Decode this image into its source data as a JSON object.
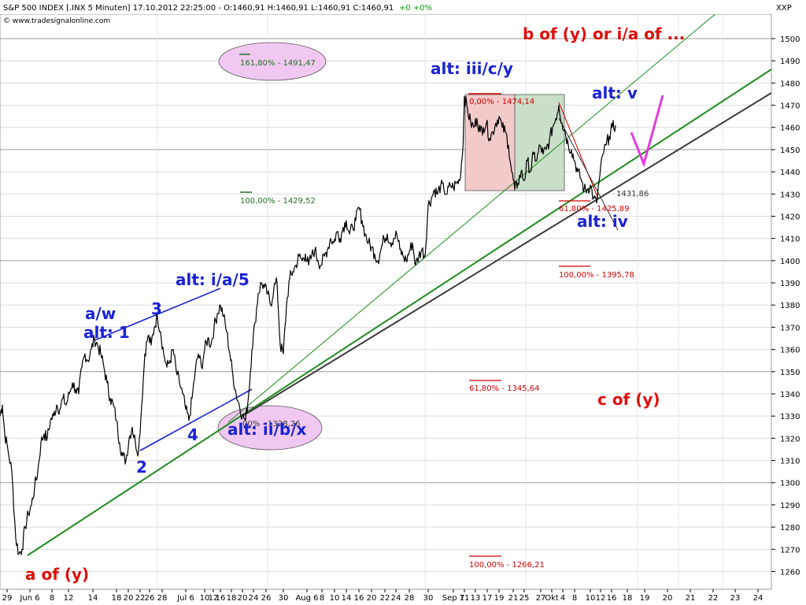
{
  "header": {
    "title": "S&P 500 INDEX [.INX  5 Minuten] 17.10.2012 22:25:00 - O:1460,91 H:1460,91 L:1460,91 C:1460,91",
    "change": "+0 +0%",
    "site": "© www.tradesignalonline.com",
    "symbol": "XXP"
  },
  "colors": {
    "price": "#000000",
    "wave_blue": "#1a23d6",
    "wave_red": "#e0100b",
    "trend_green": "#1e8c1e",
    "trend_gray": "#3c3c3c",
    "projection_magenta": "#e83ae0",
    "ellipse_fill": "#f1c8f1",
    "box_red": "#f2caca",
    "box_green": "#c9dfc9"
  },
  "chart_data": {
    "type": "line",
    "series_type": "price (5-minute)",
    "ylim": [
      1252,
      1511
    ],
    "y_ticks": [
      1260,
      1270,
      1280,
      1290,
      1300,
      1310,
      1320,
      1330,
      1340,
      1350,
      1360,
      1370,
      1380,
      1390,
      1400,
      1410,
      1420,
      1430,
      1440,
      1450,
      1460,
      1470,
      1480,
      1490,
      1500
    ],
    "x_tick_labels": [
      "29",
      "Jun 6",
      "8",
      "12",
      "14",
      "18",
      "20",
      "22",
      "26",
      "28",
      "Jul 6",
      "10",
      "12",
      "16",
      "18",
      "20",
      "24",
      "26",
      "30",
      "Aug 6",
      "8",
      "10",
      "14",
      "16",
      "20",
      "22",
      "24",
      "28",
      "30",
      "Sep 7",
      "11",
      "13",
      "17",
      "19",
      "21",
      "25",
      "27",
      "Okt",
      "4",
      "8",
      "10",
      "12",
      "16",
      "18",
      "19",
      "20",
      "21",
      "22",
      "23",
      "24"
    ],
    "grid": true,
    "price_path": [
      [
        0,
        1330
      ],
      [
        3,
        1335
      ],
      [
        6,
        1322
      ],
      [
        10,
        1315
      ],
      [
        15,
        1305
      ],
      [
        20,
        1275
      ],
      [
        24,
        1268
      ],
      [
        28,
        1270
      ],
      [
        32,
        1280
      ],
      [
        36,
        1286
      ],
      [
        40,
        1290
      ],
      [
        44,
        1298
      ],
      [
        48,
        1305
      ],
      [
        52,
        1318
      ],
      [
        56,
        1322
      ],
      [
        60,
        1320
      ],
      [
        64,
        1328
      ],
      [
        68,
        1330
      ],
      [
        72,
        1335
      ],
      [
        76,
        1333
      ],
      [
        80,
        1338
      ],
      [
        84,
        1335
      ],
      [
        88,
        1340
      ],
      [
        92,
        1345
      ],
      [
        96,
        1342
      ],
      [
        100,
        1340
      ],
      [
        104,
        1352
      ],
      [
        108,
        1358
      ],
      [
        112,
        1355
      ],
      [
        116,
        1360
      ],
      [
        120,
        1365
      ],
      [
        124,
        1362
      ],
      [
        128,
        1358
      ],
      [
        132,
        1352
      ],
      [
        136,
        1345
      ],
      [
        140,
        1338
      ],
      [
        144,
        1335
      ],
      [
        148,
        1328
      ],
      [
        152,
        1318
      ],
      [
        156,
        1312
      ],
      [
        160,
        1310
      ],
      [
        164,
        1320
      ],
      [
        168,
        1325
      ],
      [
        172,
        1318
      ],
      [
        176,
        1314
      ],
      [
        180,
        1335
      ],
      [
        184,
        1358
      ],
      [
        188,
        1366
      ],
      [
        192,
        1362
      ],
      [
        196,
        1370
      ],
      [
        200,
        1375
      ],
      [
        204,
        1368
      ],
      [
        208,
        1358
      ],
      [
        212,
        1352
      ],
      [
        216,
        1355
      ],
      [
        220,
        1360
      ],
      [
        224,
        1350
      ],
      [
        228,
        1345
      ],
      [
        232,
        1340
      ],
      [
        236,
        1333
      ],
      [
        240,
        1328
      ],
      [
        244,
        1338
      ],
      [
        248,
        1350
      ],
      [
        252,
        1358
      ],
      [
        256,
        1352
      ],
      [
        260,
        1360
      ],
      [
        264,
        1365
      ],
      [
        268,
        1362
      ],
      [
        272,
        1370
      ],
      [
        276,
        1376
      ],
      [
        280,
        1380
      ],
      [
        284,
        1375
      ],
      [
        288,
        1368
      ],
      [
        292,
        1358
      ],
      [
        296,
        1348
      ],
      [
        300,
        1340
      ],
      [
        304,
        1335
      ],
      [
        308,
        1330
      ],
      [
        312,
        1328
      ],
      [
        316,
        1340
      ],
      [
        320,
        1360
      ],
      [
        324,
        1372
      ],
      [
        328,
        1385
      ],
      [
        332,
        1390
      ],
      [
        336,
        1388
      ],
      [
        340,
        1385
      ],
      [
        344,
        1380
      ],
      [
        348,
        1388
      ],
      [
        352,
        1390
      ],
      [
        356,
        1362
      ],
      [
        360,
        1358
      ],
      [
        364,
        1380
      ],
      [
        368,
        1392
      ],
      [
        372,
        1395
      ],
      [
        376,
        1398
      ],
      [
        380,
        1402
      ],
      [
        384,
        1400
      ],
      [
        388,
        1403
      ],
      [
        392,
        1398
      ],
      [
        396,
        1402
      ],
      [
        400,
        1405
      ],
      [
        404,
        1400
      ],
      [
        408,
        1398
      ],
      [
        412,
        1402
      ],
      [
        416,
        1405
      ],
      [
        420,
        1410
      ],
      [
        424,
        1408
      ],
      [
        428,
        1413
      ],
      [
        432,
        1410
      ],
      [
        436,
        1415
      ],
      [
        440,
        1418
      ],
      [
        444,
        1412
      ],
      [
        448,
        1415
      ],
      [
        452,
        1418
      ],
      [
        456,
        1424
      ],
      [
        460,
        1418
      ],
      [
        464,
        1412
      ],
      [
        468,
        1408
      ],
      [
        472,
        1406
      ],
      [
        476,
        1403
      ],
      [
        480,
        1400
      ],
      [
        484,
        1405
      ],
      [
        488,
        1410
      ],
      [
        492,
        1412
      ],
      [
        496,
        1408
      ],
      [
        500,
        1410
      ],
      [
        504,
        1412
      ],
      [
        508,
        1405
      ],
      [
        512,
        1402
      ],
      [
        516,
        1400
      ],
      [
        520,
        1404
      ],
      [
        524,
        1408
      ],
      [
        528,
        1398
      ],
      [
        532,
        1402
      ],
      [
        536,
        1405
      ],
      [
        540,
        1402
      ],
      [
        544,
        1425
      ],
      [
        548,
        1428
      ],
      [
        552,
        1432
      ],
      [
        556,
        1430
      ],
      [
        560,
        1434
      ],
      [
        564,
        1432
      ],
      [
        568,
        1430
      ],
      [
        572,
        1434
      ],
      [
        576,
        1433
      ],
      [
        580,
        1435
      ],
      [
        584,
        1436
      ],
      [
        588,
        1450
      ],
      [
        590,
        1474
      ],
      [
        594,
        1468
      ],
      [
        598,
        1462
      ],
      [
        602,
        1460
      ],
      [
        606,
        1464
      ],
      [
        610,
        1458
      ],
      [
        614,
        1460
      ],
      [
        618,
        1462
      ],
      [
        622,
        1455
      ],
      [
        626,
        1458
      ],
      [
        630,
        1462
      ],
      [
        634,
        1465
      ],
      [
        638,
        1460
      ],
      [
        642,
        1458
      ],
      [
        646,
        1452
      ],
      [
        650,
        1440
      ],
      [
        654,
        1432
      ],
      [
        658,
        1435
      ],
      [
        662,
        1440
      ],
      [
        666,
        1436
      ],
      [
        670,
        1445
      ],
      [
        674,
        1440
      ],
      [
        678,
        1448
      ],
      [
        682,
        1445
      ],
      [
        686,
        1452
      ],
      [
        690,
        1448
      ],
      [
        694,
        1450
      ],
      [
        698,
        1454
      ],
      [
        702,
        1460
      ],
      [
        706,
        1464
      ],
      [
        710,
        1470
      ],
      [
        714,
        1462
      ],
      [
        718,
        1458
      ],
      [
        722,
        1452
      ],
      [
        726,
        1450
      ],
      [
        730,
        1445
      ],
      [
        734,
        1440
      ],
      [
        738,
        1437
      ],
      [
        742,
        1432
      ],
      [
        746,
        1432
      ],
      [
        750,
        1434
      ],
      [
        754,
        1428
      ],
      [
        758,
        1426
      ],
      [
        762,
        1438
      ],
      [
        766,
        1448
      ],
      [
        770,
        1452
      ],
      [
        774,
        1456
      ],
      [
        778,
        1460
      ],
      [
        782,
        1461
      ]
    ],
    "fib_levels": [
      {
        "label": "161,80% - 1491,47",
        "value": 1491.47,
        "color": "#207020"
      },
      {
        "label": "0,00% - 1474,14",
        "value": 1474.14,
        "color": "#d40000"
      },
      {
        "label": "100,00% - 1429,52",
        "value": 1429.52,
        "color": "#207020"
      },
      {
        "label": "1431,86",
        "value": 1431.86,
        "color": "#333333"
      },
      {
        "label": "61,80% - 1425,89",
        "value": 1425.89,
        "color": "#d40000"
      },
      {
        "label": "100,00% - 1395,78",
        "value": 1395.78,
        "color": "#d40000"
      },
      {
        "label": "61,80% - 1345,64",
        "value": 1345.64,
        "color": "#d40000"
      },
      {
        "label": "00% - 1328,26",
        "value": 1328.26,
        "color": "#333333"
      },
      {
        "label": "100,00% - 1266,21",
        "value": 1266.21,
        "color": "#d40000"
      }
    ],
    "wave_labels": {
      "b_of_y": "b of (y) or i/a of ...",
      "iii_c_y": "alt: iii/c/y",
      "alt_v": "alt: v",
      "alt_iv": "alt: iv",
      "i_a_5": "alt: i/a/5",
      "a_w": "a/w",
      "alt_1": "alt: 1",
      "w3": "3",
      "w2": "2",
      "w4": "4",
      "ii_b_x": "alt: ii/b/x",
      "c_of_y": "c of (y)",
      "a_of_y": "a of (y)"
    }
  }
}
